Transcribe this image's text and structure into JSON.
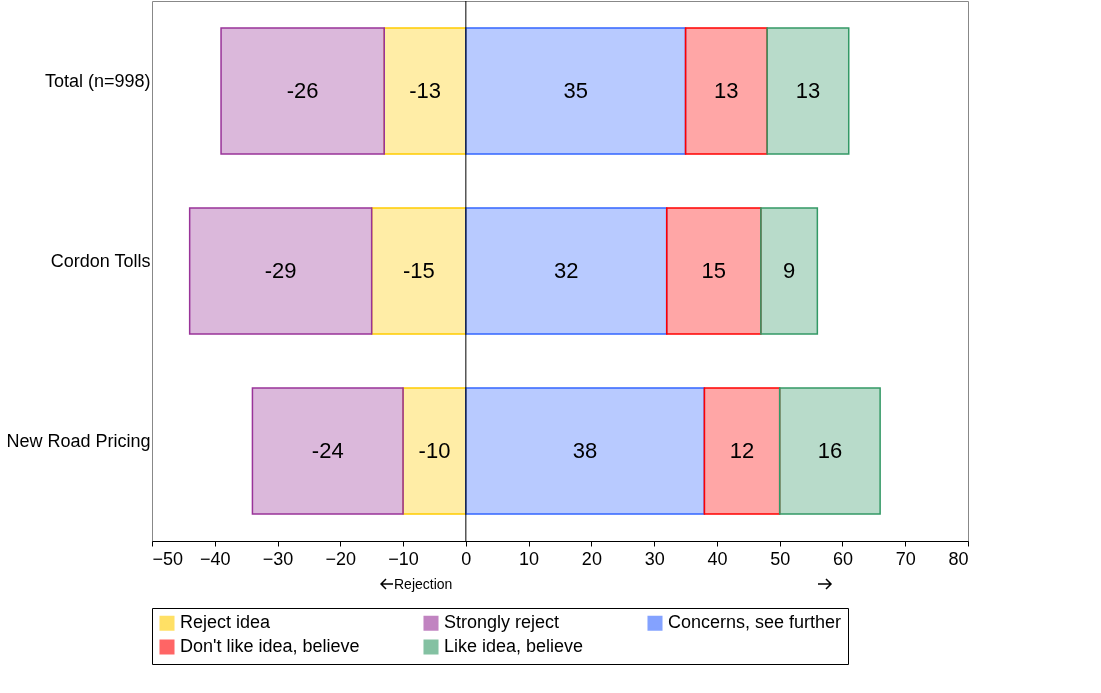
{
  "chart_data": {
    "type": "bar",
    "orientation": "horizontal",
    "stacked": true,
    "categories": [
      "Total (n=998)",
      "Cordon Tolls",
      "New Road Pricing"
    ],
    "series": [
      {
        "name": "Reject idea",
        "color": "#ffcc00",
        "values": [
          -13,
          -15,
          -10
        ]
      },
      {
        "name": "Strongly reject",
        "color": "#993399",
        "values": [
          -26,
          -29,
          -24
        ]
      },
      {
        "name": "Concerns, see further",
        "color": "#3366ff",
        "values": [
          35,
          32,
          38
        ]
      },
      {
        "name": "Don't like idea, believe",
        "color": "#ff0000",
        "values": [
          13,
          15,
          12
        ]
      },
      {
        "name": "Like idea, believe",
        "color": "#339966",
        "values": [
          13,
          9,
          16
        ]
      }
    ],
    "xlim": [
      -50,
      80
    ],
    "xticks": [
      -50,
      -40,
      -30,
      -20,
      -10,
      0,
      10,
      20,
      30,
      40,
      50,
      60,
      70,
      80
    ],
    "data_labels": true,
    "legend": "bottom",
    "ref_lines": [
      {
        "axis": "x",
        "value": 0
      }
    ],
    "annotations": [
      "Rejection"
    ]
  }
}
